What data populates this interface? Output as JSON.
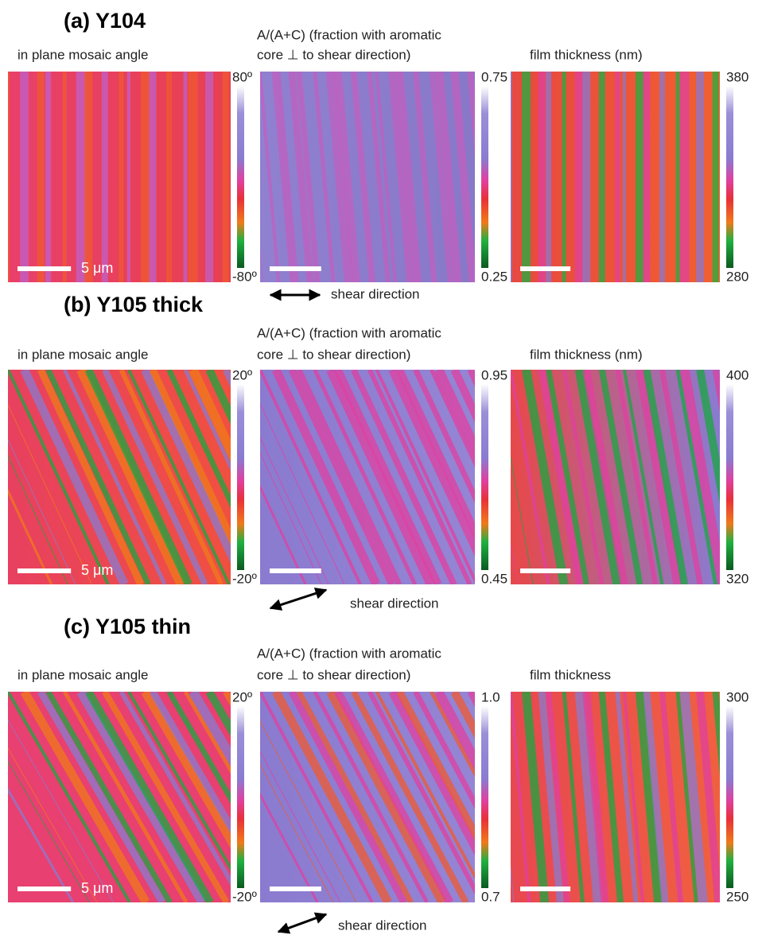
{
  "panels": [
    {
      "label": "(a) Y104",
      "maps": [
        {
          "title": [
            "in plane mosaic angle"
          ],
          "max": "80º",
          "min": "-80º",
          "scale_bar": "5 μm"
        },
        {
          "title": [
            "A/(A+C)  (fraction with aromatic",
            "core ⊥ to shear direction)"
          ],
          "max": "0.75",
          "min": "0.25"
        },
        {
          "title": [
            "film thickness (nm)"
          ],
          "max": "380",
          "min": "280"
        }
      ],
      "shear": "shear direction"
    },
    {
      "label": "(b) Y105 thick",
      "maps": [
        {
          "title": [
            "in plane mosaic angle"
          ],
          "max": "20º",
          "min": "-20º",
          "scale_bar": "5 μm"
        },
        {
          "title": [
            "A/(A+C)  (fraction with aromatic",
            "core ⊥ to shear direction)"
          ],
          "max": "0.95",
          "min": "0.45"
        },
        {
          "title": [
            "film thickness (nm)"
          ],
          "max": "400",
          "min": "320"
        }
      ],
      "shear": "shear direction"
    },
    {
      "label": "(c) Y105 thin",
      "maps": [
        {
          "title": [
            "in plane mosaic angle"
          ],
          "max": "20º",
          "min": "-20º",
          "scale_bar": "5 μm"
        },
        {
          "title": [
            "A/(A+C)  (fraction with aromatic",
            "core ⊥ to shear direction)"
          ],
          "max": "1.0",
          "min": "0.7"
        },
        {
          "title": [
            "film thickness"
          ],
          "max": "300",
          "min": "250"
        }
      ],
      "shear": "shear direction"
    }
  ]
}
